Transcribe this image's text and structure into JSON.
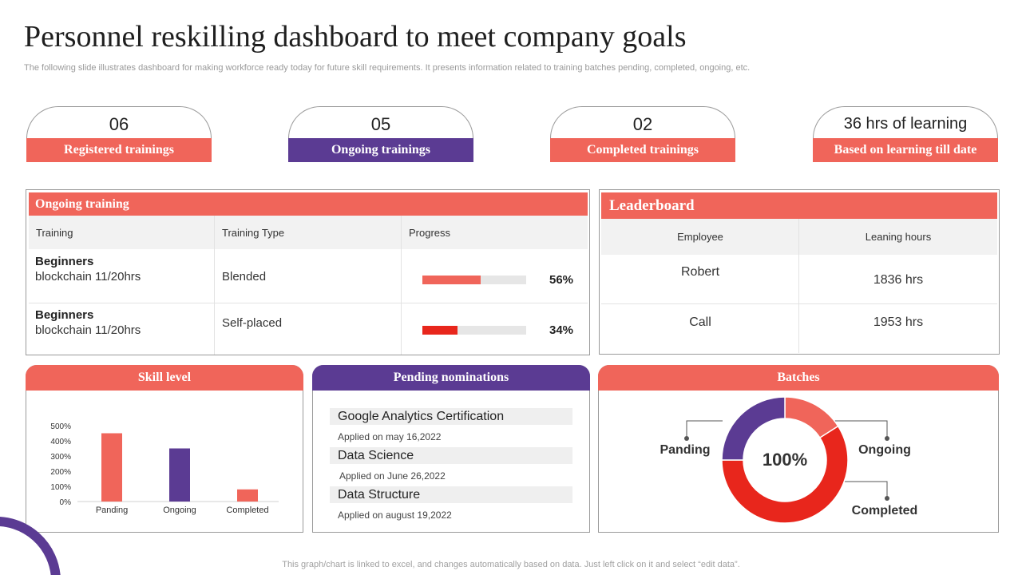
{
  "header": {
    "title": "Personnel reskilling dashboard to meet company goals",
    "subtitle": "The following slide illustrates dashboard for making workforce ready today for future skill requirements. It presents information related to training batches pending, completed, ongoing, etc."
  },
  "kpis": [
    {
      "value": "06",
      "label": "Registered trainings"
    },
    {
      "value": "05",
      "label": "Ongoing trainings"
    },
    {
      "value": "02",
      "label": "Completed trainings"
    },
    {
      "value": "36 hrs of learning",
      "label": "Based on learning till date"
    }
  ],
  "ongoing_training": {
    "title": "Ongoing training",
    "columns": [
      "Training",
      "Training Type",
      "Progress"
    ],
    "rows": [
      {
        "name": "Beginners",
        "detail": "blockchain 11/20hrs",
        "type": "Blended",
        "progress": 56,
        "progress_label": "56%"
      },
      {
        "name": "Beginners",
        "detail": "blockchain 11/20hrs",
        "type": "Self-placed",
        "progress": 34,
        "progress_label": "34%"
      }
    ]
  },
  "leaderboard": {
    "title": "Leaderboard",
    "columns": [
      "Employee",
      "Leaning hours"
    ],
    "rows": [
      {
        "employee": "Robert",
        "hours": "1836 hrs"
      },
      {
        "employee": "Call",
        "hours": "1953 hrs"
      }
    ]
  },
  "skill_level": {
    "title": "Skill level"
  },
  "pending_nominations": {
    "title": "Pending nominations",
    "items": [
      {
        "course": "Google Analytics Certification",
        "applied": "Applied on may 16,2022"
      },
      {
        "course": "Data Science",
        "applied": "Applied on June 26,2022"
      },
      {
        "course": "Data Structure",
        "applied": "Applied on august 19,2022"
      }
    ]
  },
  "batches": {
    "title": "Batches",
    "center_label": "100%",
    "labels": {
      "pending": "Panding",
      "ongoing": "Ongoing",
      "completed": "Completed"
    }
  },
  "chart_data": [
    {
      "type": "bar",
      "title": "Skill level",
      "categories": [
        "Panding",
        "Ongoing",
        "Completed"
      ],
      "values": [
        450,
        350,
        80
      ],
      "colors": [
        "#f0655a",
        "#5b3b93",
        "#f0655a"
      ],
      "yticks": [
        "0%",
        "100%",
        "200%",
        "300%",
        "400%",
        "500%"
      ],
      "ylim": [
        0,
        500
      ]
    },
    {
      "type": "pie",
      "title": "Batches",
      "center_label": "100%",
      "slices": [
        {
          "name": "Ongoing",
          "value": 16,
          "color": "#f0655a"
        },
        {
          "name": "Completed",
          "value": 59,
          "color": "#e8261c"
        },
        {
          "name": "Panding",
          "value": 25,
          "color": "#5b3b93"
        }
      ]
    }
  ],
  "footer": "This graph/chart is linked to excel,  and changes automatically based on data. Just left click on it and select “edit data”.",
  "colors": {
    "red": "#f0655a",
    "purple": "#5b3b93",
    "dark_red": "#e8261c"
  }
}
